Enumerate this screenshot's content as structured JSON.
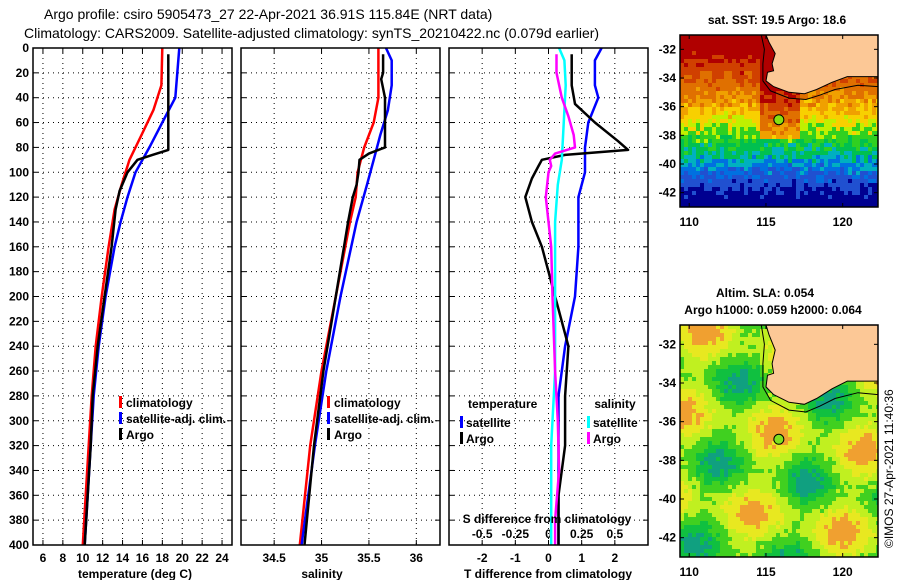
{
  "header": {
    "title_line1": "Argo profile: csiro 5905473_27 22-Apr-2021 36.91S 115.84E (NRT data)",
    "title_line2": "Climatology: CARS2009. Satellite-adjusted climatology: synTS_20210422.nc (0.079d earlier)"
  },
  "colors": {
    "climatology": "#ff0000",
    "satellite_adj": "#0000ff",
    "argo": "#000000",
    "sal_satellite": "#00ffff",
    "sal_argo": "#ff00ff",
    "land": "#fcc896"
  },
  "chart_data": [
    {
      "type": "line",
      "name": "temperature-profile",
      "xlabel": "temperature (deg C)",
      "ylabel": "",
      "xlim": [
        5,
        25
      ],
      "ylim": [
        400,
        0
      ],
      "xticks": [
        6,
        8,
        10,
        12,
        14,
        16,
        18,
        20,
        22,
        24
      ],
      "yticks": [
        0,
        20,
        40,
        60,
        80,
        100,
        120,
        140,
        160,
        180,
        200,
        220,
        240,
        260,
        280,
        300,
        320,
        340,
        360,
        380,
        400
      ],
      "grid": true,
      "legend": [
        "climatology",
        "satellite-adj. clim.",
        "Argo"
      ],
      "legend_position": "bottom-right",
      "series": [
        {
          "name": "climatology",
          "color": "#ff0000",
          "depth": [
            0,
            30,
            50,
            70,
            90,
            110,
            130,
            160,
            200,
            240,
            280,
            320,
            360,
            400
          ],
          "values": [
            18.0,
            17.9,
            17.1,
            15.9,
            14.7,
            13.9,
            13.2,
            12.6,
            11.9,
            11.3,
            10.9,
            10.6,
            10.3,
            10.0
          ]
        },
        {
          "name": "satellite-adj. clim.",
          "color": "#0000ff",
          "depth": [
            0,
            10,
            40,
            60,
            80,
            100,
            120,
            140,
            160,
            200,
            240,
            280,
            320,
            360,
            400
          ],
          "values": [
            19.7,
            19.6,
            19.3,
            18.0,
            16.7,
            15.3,
            14.5,
            13.8,
            13.2,
            12.3,
            11.6,
            11.1,
            10.8,
            10.5,
            10.2
          ]
        },
        {
          "name": "Argo",
          "color": "#000000",
          "depth": [
            5,
            82,
            86,
            90,
            100,
            115,
            130,
            160,
            200,
            240,
            280,
            320,
            360,
            400
          ],
          "values": [
            18.6,
            18.6,
            17.0,
            15.5,
            14.5,
            13.7,
            13.3,
            12.9,
            12.2,
            11.5,
            11.0,
            10.8,
            10.5,
            10.2
          ]
        }
      ]
    },
    {
      "type": "line",
      "name": "salinity-profile",
      "xlabel": "salinity",
      "ylabel": "",
      "xlim": [
        34.15,
        36.25
      ],
      "ylim": [
        400,
        0
      ],
      "xticks": [
        34.5,
        35,
        35.5,
        36
      ],
      "xtick_labels": [
        "34.5",
        "35",
        "35.5",
        "36"
      ],
      "grid": true,
      "legend": [
        "climatology",
        "satellite-adj. clim.",
        "Argo"
      ],
      "legend_position": "bottom-right",
      "series": [
        {
          "name": "climatology",
          "color": "#ff0000",
          "depth": [
            0,
            40,
            60,
            80,
            100,
            120,
            140,
            200,
            260,
            320,
            400
          ],
          "values": [
            35.6,
            35.6,
            35.55,
            35.45,
            35.38,
            35.36,
            35.3,
            35.15,
            35.0,
            34.88,
            34.77
          ]
        },
        {
          "name": "satellite-adj. clim.",
          "color": "#0000ff",
          "depth": [
            0,
            10,
            30,
            50,
            70,
            90,
            110,
            140,
            200,
            260,
            320,
            400
          ],
          "values": [
            35.68,
            35.74,
            35.74,
            35.7,
            35.62,
            35.55,
            35.48,
            35.37,
            35.2,
            35.05,
            34.93,
            34.79
          ]
        },
        {
          "name": "Argo",
          "color": "#000000",
          "depth": [
            5,
            20,
            25,
            40,
            80,
            85,
            90,
            100,
            110,
            120,
            140,
            200,
            260,
            320,
            400
          ],
          "values": [
            35.65,
            35.65,
            35.63,
            35.67,
            35.67,
            35.5,
            35.4,
            35.39,
            35.37,
            35.33,
            35.28,
            35.15,
            35.02,
            34.92,
            34.82
          ]
        }
      ]
    },
    {
      "type": "line",
      "name": "difference-profile",
      "xlabel": "T difference from climatology",
      "x2label": "S difference from climatology",
      "xlim": [
        -3,
        3
      ],
      "x2lim": [
        -0.75,
        0.75
      ],
      "ylim": [
        400,
        0
      ],
      "xticks": [
        -2,
        -1,
        0,
        1,
        2
      ],
      "x2ticks": [
        -0.5,
        -0.25,
        0,
        0.25,
        0.5
      ],
      "x2tick_labels": [
        "-0.5",
        "-0.25",
        "0",
        "0.25",
        "0.5"
      ],
      "grid": true,
      "legend_groups": [
        {
          "title": "temperature",
          "items": [
            "satellite",
            "Argo"
          ],
          "position": "left"
        },
        {
          "title": "salinity",
          "items": [
            "satellite",
            "Argo"
          ],
          "position": "right"
        }
      ],
      "series": [
        {
          "name": "temperature satellite",
          "color": "#0000ff",
          "axis": "T",
          "depth": [
            0,
            10,
            30,
            40,
            60,
            80,
            100,
            120,
            140,
            160,
            200,
            240,
            280,
            320,
            360,
            400
          ],
          "values": [
            1.6,
            1.4,
            1.4,
            1.5,
            1.2,
            1.1,
            1.1,
            0.9,
            0.9,
            0.9,
            0.8,
            0.5,
            0.3,
            0.3,
            0.3,
            0.3
          ]
        },
        {
          "name": "temperature Argo",
          "color": "#000000",
          "axis": "T",
          "depth": [
            5,
            30,
            45,
            60,
            75,
            82,
            86,
            90,
            95,
            105,
            120,
            140,
            160,
            200,
            240,
            280,
            320,
            360,
            400
          ],
          "values": [
            0.7,
            0.7,
            0.8,
            1.4,
            2.1,
            2.4,
            0.5,
            -0.2,
            -0.3,
            -0.5,
            -0.7,
            -0.5,
            -0.2,
            0.2,
            0.6,
            0.5,
            0.5,
            0.3,
            0.3
          ]
        },
        {
          "name": "salinity satellite",
          "color": "#00ffff",
          "axis": "S",
          "depth": [
            0,
            10,
            30,
            50,
            70,
            90,
            110,
            140,
            200,
            260,
            320,
            360,
            400
          ],
          "values": [
            0.08,
            0.12,
            0.13,
            0.12,
            0.11,
            0.1,
            0.07,
            0.05,
            0.05,
            0.05,
            0.02,
            0.02,
            0.02
          ]
        },
        {
          "name": "salinity Argo",
          "color": "#ff00ff",
          "axis": "S",
          "depth": [
            5,
            20,
            40,
            55,
            70,
            80,
            85,
            90,
            95,
            100,
            120,
            140,
            160,
            200,
            260,
            300,
            340,
            380,
            400
          ],
          "values": [
            0.06,
            0.06,
            0.1,
            0.15,
            0.19,
            0.2,
            0.05,
            0.01,
            0.02,
            0.0,
            -0.02,
            0.0,
            0.02,
            0.03,
            0.05,
            0.07,
            0.08,
            0.05,
            0.05
          ]
        }
      ]
    },
    {
      "type": "heatmap",
      "name": "sst-map",
      "title": "sat. SST: 19.5 Argo: 18.6",
      "xlim": [
        109.4,
        122.3
      ],
      "ylim": [
        -43,
        -31
      ],
      "xticks": [
        110,
        115,
        120
      ],
      "yticks": [
        -32,
        -34,
        -36,
        -38,
        -40,
        -42
      ],
      "marker": {
        "lon": 115.84,
        "lat": -36.91
      }
    },
    {
      "type": "heatmap",
      "name": "sla-map",
      "title": "Altim. SLA: 0.054",
      "subtitle": "Argo h1000: 0.059 h2000: 0.064",
      "xlim": [
        109.4,
        122.3
      ],
      "ylim": [
        -43,
        -31
      ],
      "xticks": [
        110,
        115,
        120
      ],
      "yticks": [
        -32,
        -34,
        -36,
        -38,
        -40,
        -42
      ],
      "marker": {
        "lon": 115.84,
        "lat": -36.91
      }
    }
  ],
  "footer": {
    "copyright": "©IMOS 27-Apr-2021 11:40:36"
  }
}
